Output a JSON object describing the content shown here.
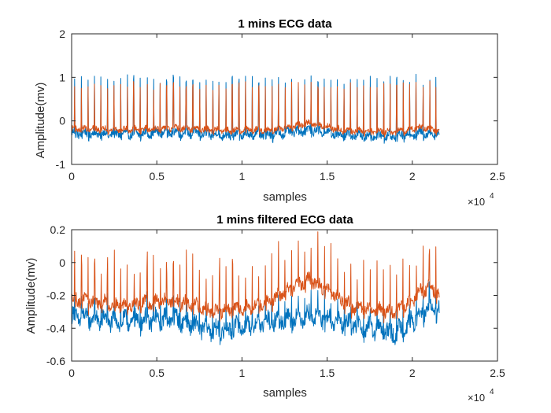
{
  "colors": {
    "series1": "#0072BD",
    "series2": "#D95319",
    "axis": "#262626"
  },
  "chart_data": [
    {
      "type": "line",
      "title": "1 mins ECG data",
      "xlabel": "samples",
      "ylabel": "Amplitude(mv)",
      "xlim": [
        0,
        25000
      ],
      "ylim": [
        -1,
        2
      ],
      "xticks": [
        0,
        5000,
        10000,
        15000,
        20000,
        25000
      ],
      "xtick_labels": [
        "0",
        "0.5",
        "1",
        "1.5",
        "2",
        "2.5"
      ],
      "x_exponent_label": "×10",
      "x_exponent_power": "4",
      "yticks": [
        -1,
        0,
        1,
        2
      ],
      "ytick_labels": [
        "-1",
        "0",
        "1",
        "2"
      ],
      "grid": false,
      "x_range": [
        0,
        21600
      ],
      "series": [
        {
          "baseline": -0.3,
          "peak": 0.95,
          "beats": 56,
          "color_key": "series1",
          "wander": [
            [
              0,
              -0.28
            ],
            [
              3000,
              -0.3
            ],
            [
              6000,
              -0.26
            ],
            [
              9000,
              -0.33
            ],
            [
              12000,
              -0.3
            ],
            [
              14000,
              -0.2
            ],
            [
              16000,
              -0.33
            ],
            [
              19000,
              -0.35
            ],
            [
              20500,
              -0.28
            ],
            [
              21600,
              -0.3
            ]
          ],
          "noise": 0.09
        },
        {
          "baseline": -0.18,
          "peak": 0.8,
          "beats": 56,
          "color_key": "series2",
          "wander": [
            [
              0,
              -0.18
            ],
            [
              3000,
              -0.2
            ],
            [
              6000,
              -0.17
            ],
            [
              9000,
              -0.22
            ],
            [
              12000,
              -0.2
            ],
            [
              14000,
              -0.05
            ],
            [
              16000,
              -0.22
            ],
            [
              19000,
              -0.25
            ],
            [
              20500,
              -0.15
            ],
            [
              21600,
              -0.22
            ]
          ],
          "noise": 0.06
        }
      ]
    },
    {
      "type": "line",
      "title": "1 mins filtered ECG data",
      "xlabel": "samples",
      "ylabel": "Amplitude(mv)",
      "xlim": [
        0,
        25000
      ],
      "ylim": [
        -0.6,
        0.2
      ],
      "xticks": [
        0,
        5000,
        10000,
        15000,
        20000,
        25000
      ],
      "xtick_labels": [
        "0",
        "0.5",
        "1",
        "1.5",
        "2",
        "2.5"
      ],
      "x_exponent_label": "×10",
      "x_exponent_power": "4",
      "yticks": [
        -0.6,
        -0.4,
        -0.2,
        0,
        0.2
      ],
      "ytick_labels": [
        "-0.6",
        "-0.4",
        "-0.2",
        "0",
        "0.2"
      ],
      "grid": false,
      "x_range": [
        0,
        21600
      ],
      "series": [
        {
          "baseline": -0.36,
          "peak": -0.2,
          "beats": 56,
          "color_key": "series1",
          "wander": [
            [
              0,
              -0.33
            ],
            [
              3000,
              -0.36
            ],
            [
              6000,
              -0.34
            ],
            [
              8500,
              -0.42
            ],
            [
              11000,
              -0.37
            ],
            [
              14000,
              -0.32
            ],
            [
              16500,
              -0.38
            ],
            [
              19000,
              -0.43
            ],
            [
              21000,
              -0.28
            ],
            [
              21600,
              -0.3
            ]
          ],
          "noise": 0.05
        },
        {
          "baseline": -0.25,
          "peak": 0.05,
          "beats": 56,
          "color_key": "series2",
          "wander": [
            [
              0,
              -0.22
            ],
            [
              3000,
              -0.26
            ],
            [
              6000,
              -0.23
            ],
            [
              8500,
              -0.3
            ],
            [
              11000,
              -0.26
            ],
            [
              14000,
              -0.1
            ],
            [
              16500,
              -0.27
            ],
            [
              19000,
              -0.3
            ],
            [
              21000,
              -0.14
            ],
            [
              21600,
              -0.2
            ]
          ],
          "noise": 0.035
        }
      ]
    }
  ]
}
